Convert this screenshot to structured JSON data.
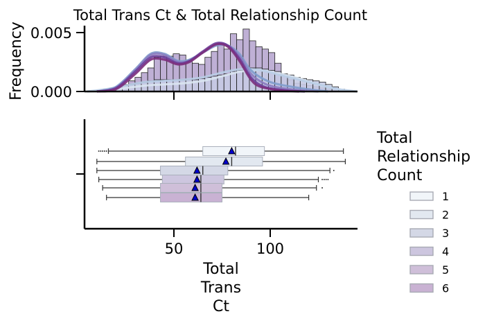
{
  "chart_data": {
    "type": "histogram+boxplot",
    "title": "Total Trans Ct & Total Relationship Count",
    "xlabel": "Total\nTrans\nCt",
    "ylabel": "Frequency",
    "xlim": [
      5,
      145
    ],
    "x_ticks": [
      50,
      100
    ],
    "hist_ylim": [
      0,
      0.0055
    ],
    "hist_y_ticks": [
      0.0,
      0.005
    ],
    "hist_y_tick_labels": [
      "0.000",
      "0.005"
    ],
    "legend": {
      "title": "Total\nRelationship\nCount",
      "placement": "right",
      "entries": [
        "1",
        "2",
        "3",
        "4",
        "5",
        "6"
      ]
    },
    "colors": {
      "1": "#f1f5f9",
      "2": "#e2e8f0",
      "3": "#d4d8e6",
      "4": "#cdc6df",
      "5": "#cfbfd9",
      "6": "#c9b2d3",
      "hist_bar": "#a996c7",
      "hist_bar_light": "#c6cbe4",
      "kde_purple": "#6a3d9a",
      "kde_magenta": "#7b2d7b",
      "kde_blue": "#7f9ccc",
      "kde_pale": "#b9cde6",
      "mean_marker": "#0000cd"
    },
    "histogram": {
      "bin_start": 10,
      "bin_width": 3.3,
      "freq_dark": [
        0.0001,
        0.0002,
        0.0003,
        0.0004,
        0.0006,
        0.0009,
        0.0012,
        0.0016,
        0.002,
        0.0029,
        0.003,
        0.003,
        0.0032,
        0.0031,
        0.0026,
        0.0024,
        0.0023,
        0.0029,
        0.0034,
        0.004,
        0.0036,
        0.0049,
        0.0044,
        0.0053,
        0.0043,
        0.0038,
        0.0036,
        0.0033,
        0.0024,
        0.0013,
        0.001,
        0.0007,
        0.0006,
        0.0005,
        0.0004,
        0.0003,
        0.0002,
        0.0002,
        0.0001
      ],
      "freq_light": [
        0.0001,
        0.0002,
        0.0003,
        0.0004,
        0.0005,
        0.0006,
        0.0007,
        0.0008,
        0.0009,
        0.001,
        0.001,
        0.001,
        0.001,
        0.001,
        0.001,
        0.001,
        0.0011,
        0.0012,
        0.0013,
        0.0014,
        0.0015,
        0.0017,
        0.0018,
        0.0019,
        0.002,
        0.002,
        0.0019,
        0.0018,
        0.0017,
        0.0015,
        0.0014,
        0.0012,
        0.0011,
        0.001,
        0.0009,
        0.0008,
        0.0006,
        0.0004,
        0.0002
      ]
    },
    "kde": [
      {
        "name": "6",
        "color": "#7b2d7b",
        "points": [
          [
            10,
            0
          ],
          [
            20,
            0.0002
          ],
          [
            30,
            0.0015
          ],
          [
            38,
            0.0027
          ],
          [
            45,
            0.0027
          ],
          [
            52,
            0.0023
          ],
          [
            58,
            0.0025
          ],
          [
            65,
            0.0033
          ],
          [
            72,
            0.004
          ],
          [
            78,
            0.0038
          ],
          [
            84,
            0.0026
          ],
          [
            90,
            0.001
          ],
          [
            95,
            0.0004
          ],
          [
            105,
            0.0001
          ],
          [
            115,
            0
          ]
        ]
      },
      {
        "name": "5",
        "color": "#6a3d9a",
        "points": [
          [
            10,
            0
          ],
          [
            20,
            0.0003
          ],
          [
            30,
            0.0017
          ],
          [
            38,
            0.0029
          ],
          [
            45,
            0.0029
          ],
          [
            52,
            0.0024
          ],
          [
            58,
            0.0026
          ],
          [
            65,
            0.0034
          ],
          [
            72,
            0.0041
          ],
          [
            78,
            0.0039
          ],
          [
            84,
            0.0028
          ],
          [
            90,
            0.0012
          ],
          [
            97,
            0.0004
          ],
          [
            108,
            0.0001
          ],
          [
            118,
            0
          ]
        ]
      },
      {
        "name": "4",
        "color": "#8a7bbf",
        "points": [
          [
            10,
            0
          ],
          [
            20,
            0.0003
          ],
          [
            30,
            0.0018
          ],
          [
            38,
            0.0031
          ],
          [
            45,
            0.0031
          ],
          [
            52,
            0.0025
          ],
          [
            58,
            0.0026
          ],
          [
            65,
            0.0033
          ],
          [
            72,
            0.004
          ],
          [
            78,
            0.0039
          ],
          [
            84,
            0.003
          ],
          [
            90,
            0.0015
          ],
          [
            98,
            0.0006
          ],
          [
            110,
            0.0002
          ],
          [
            125,
            0
          ]
        ]
      },
      {
        "name": "3",
        "color": "#7f9ccc",
        "points": [
          [
            10,
            0
          ],
          [
            20,
            0.0004
          ],
          [
            30,
            0.0019
          ],
          [
            38,
            0.0032
          ],
          [
            45,
            0.0032
          ],
          [
            52,
            0.0026
          ],
          [
            58,
            0.0027
          ],
          [
            65,
            0.0033
          ],
          [
            72,
            0.0039
          ],
          [
            78,
            0.0039
          ],
          [
            84,
            0.0032
          ],
          [
            90,
            0.0018
          ],
          [
            100,
            0.0008
          ],
          [
            115,
            0.0003
          ],
          [
            130,
            0
          ]
        ]
      },
      {
        "name": "2",
        "color": "#b9cde6",
        "points": [
          [
            5,
            0
          ],
          [
            15,
            0.0002
          ],
          [
            25,
            0.0005
          ],
          [
            35,
            0.0008
          ],
          [
            45,
            0.0009
          ],
          [
            55,
            0.001
          ],
          [
            65,
            0.0012
          ],
          [
            75,
            0.0016
          ],
          [
            85,
            0.0019
          ],
          [
            95,
            0.0018
          ],
          [
            105,
            0.0014
          ],
          [
            115,
            0.001
          ],
          [
            125,
            0.0006
          ],
          [
            135,
            0.0002
          ],
          [
            145,
            0
          ]
        ]
      },
      {
        "name": "1",
        "color": "#d9e4f0",
        "points": [
          [
            5,
            0
          ],
          [
            15,
            0.0001
          ],
          [
            25,
            0.0003
          ],
          [
            35,
            0.0005
          ],
          [
            45,
            0.0006
          ],
          [
            55,
            0.0007
          ],
          [
            65,
            0.0009
          ],
          [
            75,
            0.0013
          ],
          [
            85,
            0.0017
          ],
          [
            95,
            0.0018
          ],
          [
            105,
            0.0015
          ],
          [
            115,
            0.0011
          ],
          [
            125,
            0.0006
          ],
          [
            135,
            0.0002
          ],
          [
            145,
            0
          ]
        ]
      }
    ],
    "boxplots": [
      {
        "group": "1",
        "whisker_low": 16,
        "q1": 65,
        "median": 82,
        "q3": 97,
        "whisker_high": 138,
        "mean": 80,
        "outliers": [
          11,
          12,
          13,
          14,
          15
        ]
      },
      {
        "group": "2",
        "whisker_low": 10,
        "q1": 56,
        "median": 80,
        "q3": 96,
        "whisker_high": 139,
        "mean": 77,
        "outliers": []
      },
      {
        "group": "3",
        "whisker_low": 10,
        "q1": 43,
        "median": 65,
        "q3": 78,
        "whisker_high": 131,
        "mean": 62,
        "outliers": [
          133
        ]
      },
      {
        "group": "4",
        "whisker_low": 11,
        "q1": 44,
        "median": 64,
        "q3": 76,
        "whisker_high": 125,
        "mean": 62,
        "outliers": [
          127,
          128,
          129,
          130
        ]
      },
      {
        "group": "5",
        "whisker_low": 13,
        "q1": 43,
        "median": 64,
        "q3": 75,
        "whisker_high": 124,
        "mean": 61,
        "outliers": [
          127
        ]
      },
      {
        "group": "6",
        "whisker_low": 15,
        "q1": 43,
        "median": 64,
        "q3": 75,
        "whisker_high": 120,
        "mean": 61,
        "outliers": []
      }
    ]
  }
}
